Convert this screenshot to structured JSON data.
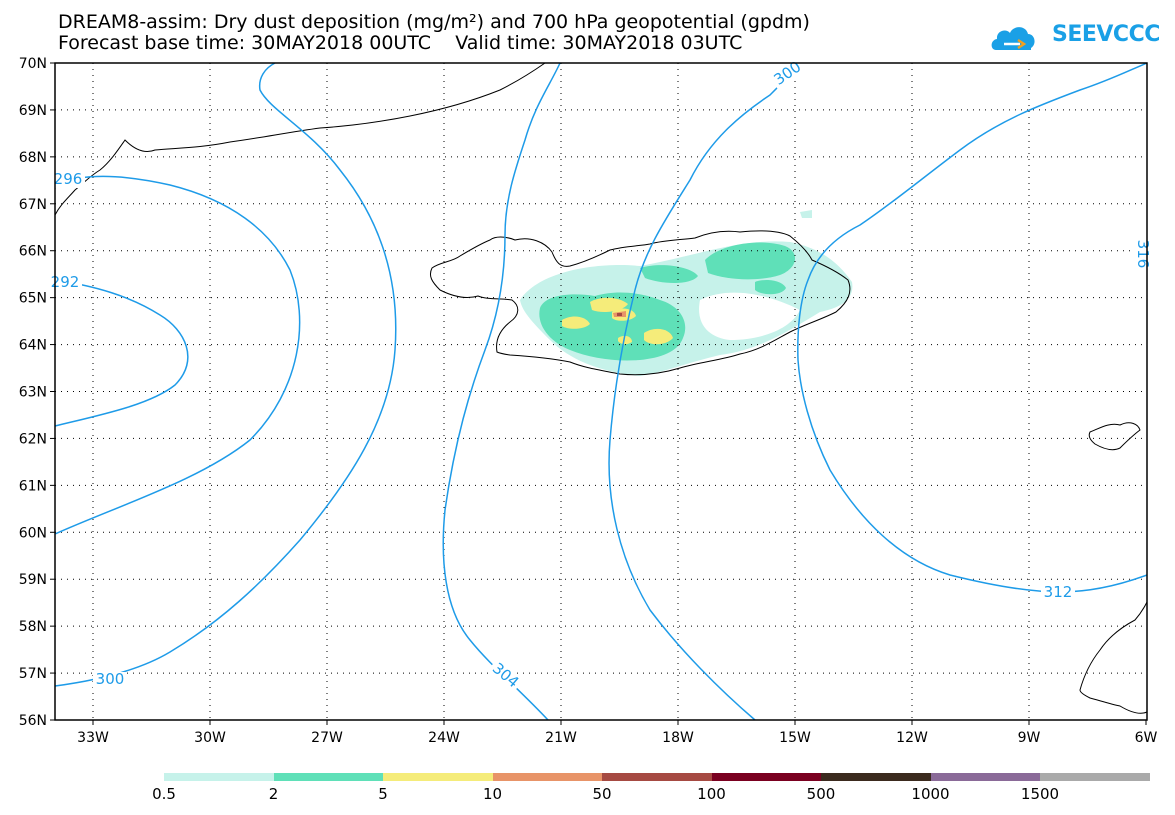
{
  "header": {
    "title_line1": "DREAM8-assim: Dry dust deposition (mg/m²) and 700 hPa geopotential (gpdm)",
    "title_line2": "Forecast base time: 30MAY2018 00UTC    Valid time: 30MAY2018 03UTC",
    "logo_text": "SEEVCCC"
  },
  "map": {
    "lat_labels": [
      "70N",
      "69N",
      "68N",
      "67N",
      "66N",
      "65N",
      "64N",
      "63N",
      "62N",
      "61N",
      "60N",
      "59N",
      "58N",
      "57N",
      "56N"
    ],
    "lon_labels": [
      "33W",
      "30W",
      "27W",
      "24W",
      "21W",
      "18W",
      "15W",
      "12W",
      "9W",
      "6W"
    ],
    "contour_color": "#1e9be8",
    "contour_labels": [
      "296",
      "292",
      "300",
      "304",
      "300",
      "312",
      "316"
    ],
    "region_name": "Iceland"
  },
  "legend": {
    "labels": [
      "0.5",
      "2",
      "5",
      "10",
      "50",
      "100",
      "500",
      "1000",
      "1500"
    ],
    "colors": [
      "#c6f2ea",
      "#5fe0b8",
      "#f5ec7a",
      "#e89468",
      "#a64a42",
      "#7a0020",
      "#3b2a1e",
      "#8a6a98",
      "#aaaaaa"
    ]
  }
}
